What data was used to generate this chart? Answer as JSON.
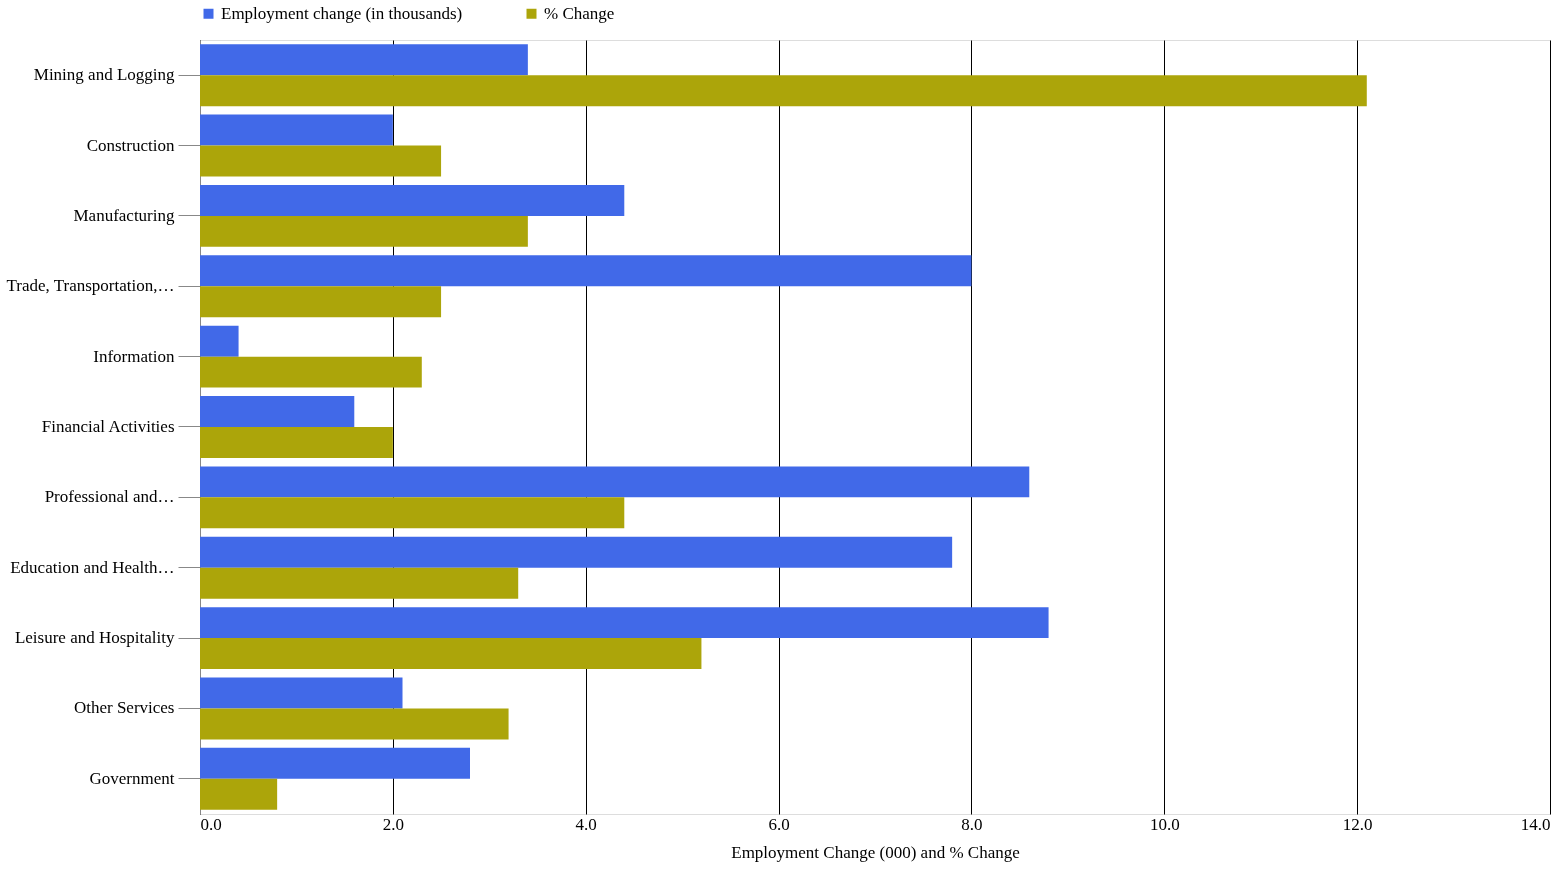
{
  "chart_data": {
    "type": "bar",
    "orientation": "horizontal",
    "xlabel": "Employment  Change  (000) and % Change",
    "categories": [
      "Mining and Logging",
      "Construction",
      "Manufacturing",
      "Trade, Transportation,…",
      "Information",
      "Financial Activities",
      "Professional and…",
      "Education and Health…",
      "Leisure and Hospitality",
      "Other Services",
      "Government"
    ],
    "series": [
      {
        "name": "Employment change (in thousands)",
        "color": "#4169e8",
        "values": [
          3.4,
          2.0,
          4.4,
          8.0,
          0.4,
          1.6,
          8.6,
          7.8,
          8.8,
          2.1,
          2.8
        ]
      },
      {
        "name": "% Change",
        "color": "#aca50a",
        "values": [
          12.1,
          2.5,
          3.4,
          2.5,
          2.3,
          2.0,
          4.4,
          3.3,
          5.2,
          3.2,
          0.8
        ]
      }
    ],
    "xlim": [
      0,
      14
    ],
    "xticks": [
      {
        "value": 0,
        "label": "0.0"
      },
      {
        "value": 2,
        "label": "2.0"
      },
      {
        "value": 4,
        "label": "4.0"
      },
      {
        "value": 6,
        "label": "6.0"
      },
      {
        "value": 8,
        "label": "8.0"
      },
      {
        "value": 10,
        "label": "10.0"
      },
      {
        "value": 12,
        "label": "12.0"
      },
      {
        "value": 14,
        "label": "14.0"
      }
    ],
    "grid": "x",
    "legend": "top"
  }
}
